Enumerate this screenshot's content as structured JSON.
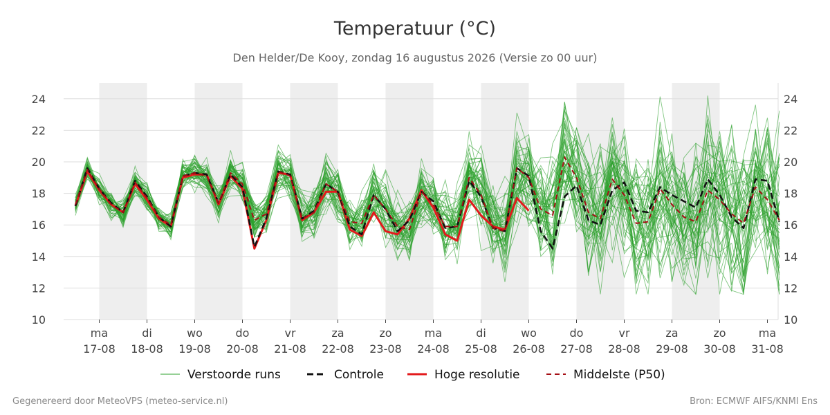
{
  "chart_data": {
    "type": "line",
    "title": "Temperatuur (°C)",
    "subtitle": "Den Helder/De Kooy, zondag 16 augustus 2026 (Versie zo 00 uur)",
    "ylim": [
      10,
      25
    ],
    "y_ticks": [
      10,
      12,
      14,
      16,
      18,
      20,
      22,
      24
    ],
    "x_start": "16-08 12:00",
    "x_step": "6 uur",
    "day_ticks": [
      {
        "day": "ma",
        "date": "17-08"
      },
      {
        "day": "di",
        "date": "18-08"
      },
      {
        "day": "wo",
        "date": "19-08"
      },
      {
        "day": "do",
        "date": "20-08"
      },
      {
        "day": "vr",
        "date": "21-08"
      },
      {
        "day": "za",
        "date": "22-08"
      },
      {
        "day": "zo",
        "date": "23-08"
      },
      {
        "day": "ma",
        "date": "24-08"
      },
      {
        "day": "di",
        "date": "25-08"
      },
      {
        "day": "wo",
        "date": "26-08"
      },
      {
        "day": "do",
        "date": "27-08"
      },
      {
        "day": "vr",
        "date": "28-08"
      },
      {
        "day": "za",
        "date": "29-08"
      },
      {
        "day": "zo",
        "date": "30-08"
      },
      {
        "day": "ma",
        "date": "31-08"
      }
    ],
    "shaded_days": [
      "17-08",
      "19-08",
      "21-08",
      "23-08",
      "25-08",
      "27-08",
      "29-08"
    ],
    "grid": true,
    "legend_position": "bottom",
    "legend": [
      "Verstoorde runs",
      "Controle",
      "Hoge resolutie",
      "Middelste (P50)"
    ],
    "series": {
      "control": [
        17.2,
        19.6,
        18.3,
        17.4,
        16.8,
        18.8,
        17.8,
        16.5,
        15.9,
        19.1,
        19.3,
        19.2,
        17.4,
        19.2,
        18.4,
        14.6,
        16.4,
        19.4,
        19.2,
        16.4,
        16.9,
        18.6,
        18.1,
        15.9,
        15.4,
        17.9,
        17.0,
        15.6,
        16.3,
        18.1,
        17.5,
        15.8,
        15.9,
        18.8,
        17.8,
        15.8,
        15.6,
        19.6,
        19.1,
        15.6,
        14.5,
        17.8,
        18.5,
        16.3,
        16.0,
        18.2,
        18.7,
        16.9,
        16.8,
        18.4,
        17.9,
        17.5,
        17.1,
        18.9,
        17.9,
        16.5,
        15.8,
        18.9,
        18.8,
        16.2
      ],
      "high_resolution": [
        17.2,
        19.4,
        18.2,
        17.3,
        16.8,
        18.6,
        17.6,
        16.4,
        15.9,
        19.0,
        19.2,
        19.2,
        17.3,
        19.1,
        18.3,
        14.5,
        16.3,
        19.3,
        19.2,
        16.3,
        16.8,
        18.1,
        18.1,
        15.7,
        15.3,
        16.8,
        15.6,
        15.4,
        16.4,
        18.2,
        17.1,
        15.4,
        15.0,
        17.6,
        16.6,
        15.9,
        15.7,
        17.7,
        16.9
      ],
      "median_p50": [
        17.3,
        19.5,
        18.3,
        17.3,
        16.8,
        18.7,
        17.7,
        16.5,
        16.0,
        19.1,
        19.3,
        19.1,
        17.4,
        19.3,
        18.6,
        16.3,
        16.7,
        19.4,
        19.1,
        16.4,
        16.8,
        18.6,
        18.1,
        16.2,
        16.1,
        17.9,
        17.0,
        15.9,
        15.7,
        18.1,
        17.3,
        15.9,
        15.9,
        19.0,
        17.9,
        15.8,
        15.6,
        19.6,
        19.0,
        17.0,
        16.6,
        20.3,
        19.0,
        16.8,
        16.4,
        18.9,
        17.9,
        16.1,
        16.2,
        18.3,
        17.3,
        16.5,
        16.2,
        18.2,
        17.6,
        16.7,
        16.1,
        18.4,
        17.6,
        16.3
      ]
    },
    "ensemble_members": 50,
    "ensemble_base": [
      17.3,
      19.5,
      18.3,
      17.3,
      16.8,
      18.7,
      17.7,
      16.5,
      16.0,
      19.1,
      19.3,
      19.1,
      17.4,
      19.3,
      18.6,
      16.3,
      16.7,
      19.4,
      19.1,
      16.4,
      16.8,
      18.6,
      18.1,
      16.2,
      16.1,
      17.9,
      17.0,
      15.9,
      15.7,
      18.1,
      17.3,
      15.9,
      15.9,
      19.0,
      17.9,
      15.8,
      15.6,
      19.6,
      19.0,
      17.0,
      16.6,
      20.3,
      19.0,
      16.8,
      16.4,
      18.9,
      17.9,
      16.1,
      16.2,
      18.3,
      17.3,
      16.5,
      16.2,
      18.2,
      17.6,
      16.7,
      16.1,
      18.4,
      17.6,
      16.3
    ],
    "ensemble_spread": [
      0.3,
      0.3,
      0.4,
      0.4,
      0.4,
      0.4,
      0.4,
      0.4,
      0.4,
      0.5,
      0.5,
      0.5,
      0.6,
      0.6,
      0.6,
      0.7,
      0.7,
      0.8,
      0.8,
      0.8,
      0.8,
      0.9,
      0.9,
      0.9,
      0.9,
      1.0,
      1.0,
      1.0,
      1.0,
      1.1,
      1.1,
      1.1,
      1.2,
      1.2,
      1.3,
      1.3,
      1.4,
      1.5,
      1.6,
      1.6,
      1.7,
      1.8,
      1.9,
      1.9,
      2.0,
      2.0,
      2.1,
      2.1,
      2.2,
      2.2,
      2.3,
      2.3,
      2.4,
      2.4,
      2.4,
      2.5,
      2.5,
      2.5,
      2.6,
      2.6
    ],
    "colors": {
      "ensemble": "#2ca02c",
      "control": "#111111",
      "high_resolution": "#e31a1c",
      "median_p50": "#a50f15",
      "shade": "#eeeeee",
      "grid": "#dddddd"
    }
  },
  "footer": {
    "left": "Gegenereerd door MeteoVPS (meteo-service.nl)",
    "right": "Bron: ECMWF AIFS/KNMI Ens"
  }
}
